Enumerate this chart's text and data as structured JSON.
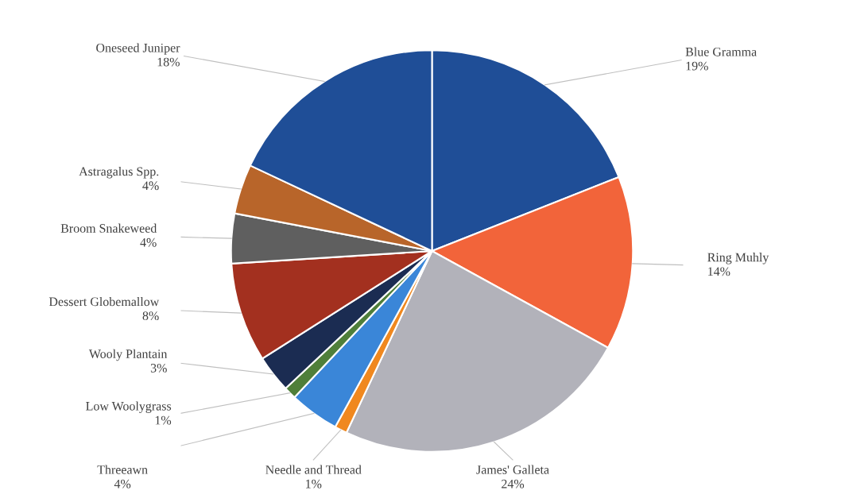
{
  "chart_data": {
    "type": "pie",
    "categories": [
      "Blue Gramma",
      "Ring Muhly",
      "James' Galleta",
      "Needle and Thread",
      "Threeawn",
      "Low Woolygrass",
      "Wooly Plantain",
      "Dessert Globemallow",
      "Broom Snakeweed",
      "Astragalus Spp.",
      "Oneseed Juniper"
    ],
    "values": [
      19,
      14,
      24,
      1,
      4,
      1,
      3,
      8,
      4,
      4,
      18
    ],
    "value_labels": [
      "19%",
      "14%",
      "24%",
      "1%",
      "4%",
      "1%",
      "3%",
      "8%",
      "4%",
      "4%",
      "18%"
    ],
    "colors": [
      "#1f4e97",
      "#f2643a",
      "#b2b2ba",
      "#f0881f",
      "#3a86d8",
      "#4f7f3a",
      "#1b2c52",
      "#a3301f",
      "#5f5f5f",
      "#b8652a",
      "#1f4e97"
    ]
  }
}
